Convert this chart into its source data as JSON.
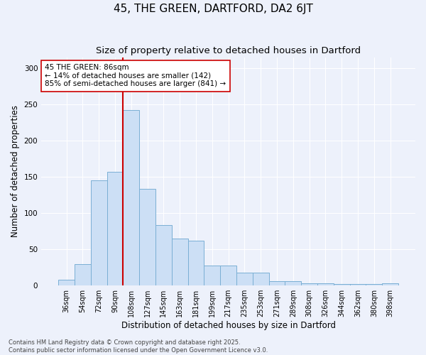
{
  "title": "45, THE GREEN, DARTFORD, DA2 6JT",
  "subtitle": "Size of property relative to detached houses in Dartford",
  "xlabel": "Distribution of detached houses by size in Dartford",
  "ylabel": "Number of detached properties",
  "bar_color": "#ccdff5",
  "bar_edge_color": "#7aafd4",
  "background_color": "#edf1fb",
  "grid_color": "#ffffff",
  "categories": [
    "36sqm",
    "54sqm",
    "72sqm",
    "90sqm",
    "108sqm",
    "127sqm",
    "145sqm",
    "163sqm",
    "181sqm",
    "199sqm",
    "217sqm",
    "235sqm",
    "253sqm",
    "271sqm",
    "289sqm",
    "308sqm",
    "326sqm",
    "344sqm",
    "362sqm",
    "380sqm",
    "398sqm"
  ],
  "values": [
    8,
    30,
    145,
    157,
    242,
    133,
    83,
    65,
    62,
    28,
    28,
    18,
    18,
    6,
    6,
    3,
    3,
    2,
    2,
    2,
    3
  ],
  "vline_x": 3.5,
  "vline_color": "#cc0000",
  "annotation_text": "45 THE GREEN: 86sqm\n← 14% of detached houses are smaller (142)\n85% of semi-detached houses are larger (841) →",
  "footnote": "Contains HM Land Registry data © Crown copyright and database right 2025.\nContains public sector information licensed under the Open Government Licence v3.0.",
  "ylim": [
    0,
    315
  ],
  "yticks": [
    0,
    50,
    100,
    150,
    200,
    250,
    300
  ],
  "title_fontsize": 11,
  "subtitle_fontsize": 9.5,
  "label_fontsize": 8.5,
  "tick_fontsize": 7,
  "footnote_fontsize": 6,
  "annot_fontsize": 7.5
}
